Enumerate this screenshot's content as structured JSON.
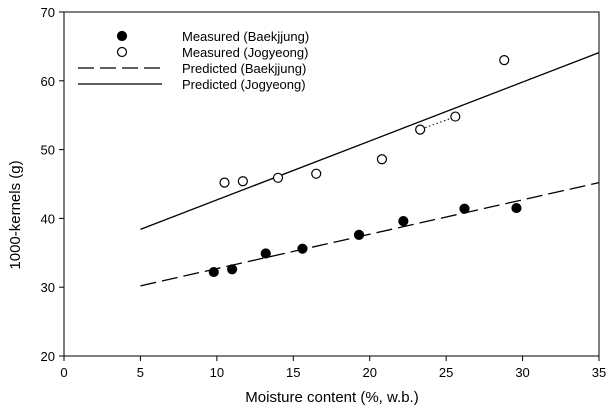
{
  "chart_data": {
    "type": "scatter",
    "xlabel": "Moisture content (%, w.b.)",
    "ylabel": "1000-kernels (g)",
    "xlim": [
      0,
      35
    ],
    "ylim": [
      20,
      70
    ],
    "xticks": [
      0,
      5,
      10,
      15,
      20,
      25,
      30,
      35
    ],
    "yticks": [
      20,
      30,
      40,
      50,
      60,
      70
    ],
    "legend_position": "top-left",
    "grid": false,
    "series": [
      {
        "name": "Measured (Baekjjung)",
        "kind": "points",
        "marker": "filled-circle",
        "x": [
          9.8,
          11.0,
          13.2,
          15.6,
          19.3,
          22.2,
          26.2,
          29.6
        ],
        "y": [
          32.2,
          32.6,
          34.9,
          35.6,
          37.6,
          39.6,
          41.4,
          41.5
        ]
      },
      {
        "name": "Measured (Jogyeong)",
        "kind": "points",
        "marker": "open-circle",
        "x": [
          10.5,
          11.7,
          14.0,
          16.5,
          20.8,
          23.3,
          25.6,
          28.8
        ],
        "y": [
          45.2,
          45.4,
          45.9,
          46.5,
          48.6,
          52.9,
          54.8,
          63.0
        ]
      },
      {
        "name": "Predicted (Baekjjung)",
        "kind": "line",
        "style": "dashed",
        "x": [
          5,
          35
        ],
        "y": [
          30.2,
          45.2
        ]
      },
      {
        "name": "Predicted (Jogyeong)",
        "kind": "line",
        "style": "solid",
        "x": [
          5,
          35
        ],
        "y": [
          38.4,
          64.1
        ]
      }
    ],
    "annotation_segment": {
      "style": "dotted",
      "x": [
        23.3,
        25.6
      ],
      "y": [
        52.9,
        54.8
      ]
    }
  }
}
